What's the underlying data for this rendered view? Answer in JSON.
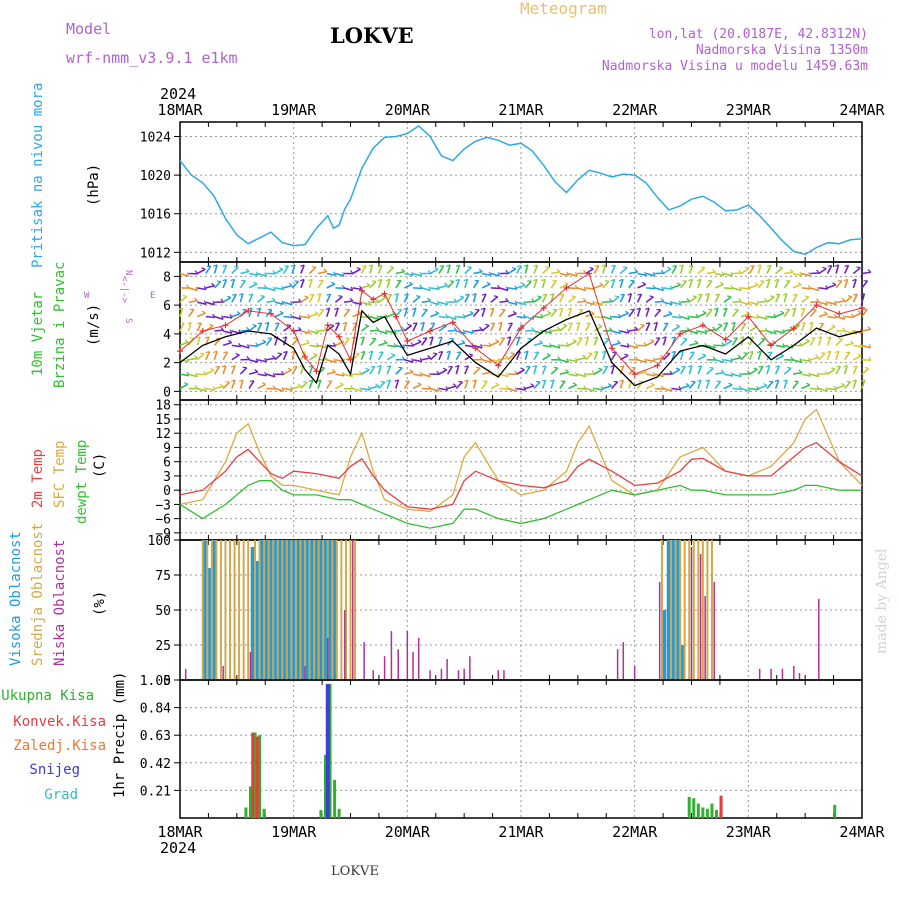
{
  "header": {
    "model_label": "Model",
    "model_name": "wrf-nmm_v3.9.1 e1km",
    "station": "LOKVE",
    "meteogram": "Meteogram",
    "lonlat": "lon,lat (20.0187E, 42.8312N)",
    "elevation": "Nadmorska Visina 1350m",
    "elevation_model": "Nadmorska Visina u modelu 1459.63m",
    "footer_station": "LOKVE",
    "credit": "made by Angel"
  },
  "time_axis": {
    "year": "2024",
    "labels": [
      "18MAR",
      "19MAR",
      "20MAR",
      "21MAR",
      "22MAR",
      "23MAR",
      "24MAR"
    ]
  },
  "colors": {
    "pressure": "#2fa8e8",
    "wind_speed": "#000000",
    "gust": "#e83030",
    "temp2m": "#e84040",
    "sfc_temp": "#e0a840",
    "dewpoint": "#30c030",
    "high_cloud": "#1f9be0",
    "mid_cloud": "#d4a84a",
    "low_cloud": "#b0309a",
    "total_precip": "#30b030",
    "convective": "#e83c3c",
    "freezing": "#f07830",
    "snow": "#3c3cd8",
    "hail": "#30c0c0",
    "title_purple": "#b060d0",
    "meteogram_orange": "#e8c070"
  },
  "chart_data": [
    {
      "type": "line",
      "name": "pressure",
      "ylabel_left": "Pritisak na nivou mora",
      "ylabel": "(hPa)",
      "xlim": [
        0,
        6
      ],
      "ylim": [
        1011,
        1025.5
      ],
      "yticks": [
        1012,
        1016,
        1020,
        1024
      ],
      "grid": true,
      "x": [
        0,
        0.1,
        0.2,
        0.3,
        0.4,
        0.5,
        0.6,
        0.7,
        0.8,
        0.9,
        1.0,
        1.1,
        1.2,
        1.3,
        1.35,
        1.4,
        1.45,
        1.5,
        1.6,
        1.7,
        1.8,
        1.9,
        2.0,
        2.1,
        2.2,
        2.3,
        2.4,
        2.5,
        2.6,
        2.7,
        2.8,
        2.9,
        3.0,
        3.1,
        3.2,
        3.3,
        3.4,
        3.5,
        3.6,
        3.7,
        3.8,
        3.9,
        4.0,
        4.1,
        4.2,
        4.3,
        4.4,
        4.5,
        4.6,
        4.7,
        4.8,
        4.9,
        5.0,
        5.1,
        5.2,
        5.3,
        5.4,
        5.5,
        5.6,
        5.7,
        5.8,
        5.9,
        6.0
      ],
      "values": [
        1021.5,
        1020,
        1019.2,
        1017.8,
        1015.5,
        1013.8,
        1012.9,
        1013.5,
        1014.1,
        1013,
        1012.7,
        1012.8,
        1014.5,
        1015.8,
        1014.5,
        1014.8,
        1016.5,
        1017.5,
        1020.7,
        1022.8,
        1023.9,
        1024,
        1024.3,
        1025.1,
        1024,
        1022,
        1021.5,
        1022.7,
        1023.5,
        1023.9,
        1023.6,
        1023.1,
        1023.3,
        1022.5,
        1021,
        1019.3,
        1018.2,
        1019.5,
        1020.5,
        1020.2,
        1019.8,
        1020.1,
        1020,
        1019.2,
        1017.7,
        1016.4,
        1016.8,
        1017.5,
        1017.8,
        1017.2,
        1016.3,
        1016.4,
        1016.9,
        1015.8,
        1014.5,
        1013.2,
        1012.1,
        1011.8,
        1012.5,
        1013,
        1012.9,
        1013.3,
        1013.4
      ]
    },
    {
      "type": "line",
      "name": "wind",
      "ylabel_left1": "10m Vjetar",
      "ylabel_left2": "Brzina i Pravac",
      "ylabel": "(m/s)",
      "compass": {
        "n": "N",
        "s": "S",
        "w": "W",
        "e": "E",
        "arrows": "<-|->"
      },
      "xlim": [
        0,
        6
      ],
      "ylim": [
        -0.6,
        9
      ],
      "yticks": [
        0,
        2,
        4,
        6,
        8
      ],
      "grid": true,
      "x": [
        0,
        0.2,
        0.4,
        0.6,
        0.8,
        1.0,
        1.1,
        1.2,
        1.3,
        1.4,
        1.5,
        1.6,
        1.7,
        1.8,
        1.9,
        2.0,
        2.2,
        2.4,
        2.6,
        2.8,
        3.0,
        3.2,
        3.4,
        3.6,
        3.8,
        4.0,
        4.2,
        4.4,
        4.6,
        4.8,
        5.0,
        5.2,
        5.4,
        5.6,
        5.8,
        6.0
      ],
      "series": [
        {
          "key": "speed",
          "values": [
            2.0,
            3.2,
            3.8,
            4.2,
            4.0,
            3.0,
            1.5,
            0.6,
            3.2,
            2.6,
            1.2,
            5.6,
            4.8,
            5.2,
            3.8,
            2.5,
            3.0,
            3.5,
            2.0,
            1.0,
            3.0,
            4.2,
            5.0,
            5.6,
            2.0,
            0.4,
            1.0,
            2.8,
            3.2,
            2.6,
            3.8,
            2.2,
            3.2,
            4.4,
            3.8,
            4.2
          ]
        },
        {
          "key": "gust",
          "values": [
            2.8,
            4.2,
            4.6,
            5.6,
            5.4,
            4.2,
            2.4,
            1.4,
            4.6,
            3.8,
            2.2,
            7.0,
            6.4,
            6.8,
            5.2,
            3.5,
            4.2,
            4.8,
            3.0,
            1.8,
            4.4,
            5.8,
            7.2,
            8.2,
            3.0,
            1.2,
            1.8,
            4.0,
            4.6,
            3.6,
            5.2,
            3.2,
            4.4,
            6.0,
            5.4,
            5.8
          ]
        }
      ]
    },
    {
      "type": "line",
      "name": "temperature",
      "ylabel_left1": "2m Temp",
      "ylabel_left2": "SFC Temp",
      "ylabel_left3": "dewpt Temp",
      "ylabel": "(C)",
      "xlim": [
        0,
        6
      ],
      "ylim": [
        -10.5,
        19
      ],
      "yticks": [
        18,
        15,
        12,
        9,
        6,
        3,
        0,
        -3,
        -6,
        -9
      ],
      "grid": true,
      "x": [
        0,
        0.2,
        0.4,
        0.5,
        0.6,
        0.7,
        0.8,
        0.9,
        1.0,
        1.2,
        1.4,
        1.5,
        1.6,
        1.7,
        1.8,
        2.0,
        2.2,
        2.4,
        2.5,
        2.6,
        2.8,
        3.0,
        3.2,
        3.4,
        3.5,
        3.6,
        3.8,
        4.0,
        4.2,
        4.4,
        4.5,
        4.6,
        4.8,
        5.0,
        5.2,
        5.4,
        5.5,
        5.6,
        5.8,
        6.0
      ],
      "series": [
        {
          "key": "t2m",
          "values": [
            -1,
            0,
            4,
            7,
            8.6,
            6,
            3.5,
            2.5,
            4,
            3.5,
            2.5,
            5,
            6.6,
            3,
            0,
            -3.5,
            -4,
            -3,
            2,
            4,
            2,
            1,
            0.5,
            2,
            5,
            6.5,
            4,
            1,
            1.5,
            4,
            6.5,
            6.7,
            4,
            3,
            3,
            7,
            9,
            10,
            6,
            3
          ]
        },
        {
          "key": "sfc",
          "values": [
            -3,
            -2,
            6,
            12,
            14,
            8,
            3,
            1,
            1,
            0,
            -1,
            7,
            12,
            4,
            -2,
            -4,
            -4.5,
            -1,
            7,
            10,
            2,
            -1,
            0,
            4,
            10,
            13.5,
            2,
            -1,
            0,
            7,
            8,
            9,
            4,
            3,
            5,
            10,
            15,
            17,
            6,
            1
          ]
        },
        {
          "key": "dewp",
          "values": [
            -3,
            -6,
            -3,
            -1,
            1,
            2,
            2,
            0,
            -1,
            -1,
            -2,
            -2,
            -3,
            -4,
            -5,
            -7,
            -8,
            -7,
            -4,
            -4,
            -6,
            -7,
            -6,
            -4,
            -3,
            -2,
            0,
            -1,
            0,
            1,
            0,
            0,
            -1,
            -1,
            -1,
            0,
            1,
            1,
            0,
            0
          ]
        }
      ]
    },
    {
      "type": "bar",
      "name": "clouds",
      "ylabel_left1": "Visoka Oblacnost",
      "ylabel_left2": "Srednja Oblacnost",
      "ylabel_left3": "Niska  Oblacnost",
      "ylabel": "(%)",
      "xlim": [
        0,
        6
      ],
      "ylim": [
        0,
        100
      ],
      "yticks": [
        0,
        25,
        50,
        75,
        100
      ],
      "grid": true,
      "series": [
        {
          "key": "high",
          "x": [
            0.22,
            0.26,
            0.3,
            0.64,
            0.68,
            0.72,
            0.76,
            0.8,
            0.84,
            0.88,
            0.92,
            0.96,
            1.0,
            1.04,
            1.08,
            1.12,
            1.16,
            1.2,
            1.24,
            1.28,
            1.32,
            1.36,
            4.26,
            4.3,
            4.34,
            4.38,
            4.42
          ],
          "values": [
            100,
            80,
            100,
            95,
            85,
            100,
            100,
            100,
            100,
            100,
            100,
            100,
            100,
            100,
            100,
            100,
            100,
            100,
            100,
            100,
            100,
            100,
            50,
            100,
            100,
            100,
            25
          ]
        },
        {
          "key": "mid",
          "x": [
            0.2,
            0.24,
            0.28,
            0.32,
            0.36,
            0.4,
            0.44,
            0.48,
            0.52,
            0.56,
            0.6,
            0.66,
            0.7,
            0.74,
            0.78,
            0.82,
            0.86,
            0.9,
            0.94,
            0.98,
            1.02,
            1.06,
            1.1,
            1.14,
            1.18,
            1.22,
            1.26,
            1.3,
            1.34,
            1.38,
            1.42,
            1.46,
            1.5,
            1.54,
            4.24,
            4.32,
            4.36,
            4.4,
            4.44,
            4.48,
            4.52,
            4.56,
            4.6,
            4.64,
            4.68
          ],
          "values": [
            100,
            100,
            100,
            100,
            100,
            100,
            100,
            100,
            100,
            100,
            100,
            100,
            100,
            100,
            100,
            100,
            100,
            100,
            100,
            100,
            100,
            100,
            100,
            100,
            100,
            100,
            100,
            100,
            100,
            100,
            100,
            100,
            100,
            100,
            100,
            100,
            100,
            100,
            100,
            100,
            100,
            100,
            100,
            100,
            100
          ]
        },
        {
          "key": "low",
          "x": [
            0.05,
            0.38,
            0.62,
            1.1,
            1.3,
            1.45,
            1.52,
            1.62,
            1.7,
            1.8,
            1.86,
            1.92,
            2.0,
            2.05,
            2.1,
            2.2,
            2.3,
            2.35,
            2.45,
            2.5,
            2.55,
            2.8,
            2.85,
            3.85,
            3.9,
            4.0,
            4.22,
            4.5,
            4.58,
            4.62,
            4.7,
            5.1,
            5.2,
            5.3,
            5.4,
            5.45,
            5.62
          ],
          "values": [
            8,
            10,
            20,
            10,
            30,
            50,
            100,
            27,
            7,
            17,
            35,
            22,
            35,
            20,
            30,
            7,
            8,
            15,
            7,
            8,
            17,
            7,
            7,
            22,
            27,
            10,
            70,
            95,
            90,
            60,
            70,
            8,
            8,
            8,
            10,
            5,
            58
          ]
        }
      ]
    },
    {
      "type": "bar",
      "name": "precipitation",
      "legend": [
        "Ukupna Kisa",
        "Konvek.Kisa",
        "Zaledj.Kisa",
        "Snijeg",
        "Grad"
      ],
      "ylabel": "1hr Precip (mm)",
      "xlim": [
        0,
        6
      ],
      "ylim": [
        0,
        1.05
      ],
      "yticks": [
        0.21,
        0.42,
        0.63,
        0.84,
        1.05
      ],
      "grid": true,
      "series": [
        {
          "key": "total",
          "x": [
            0.58,
            0.62,
            0.66,
            0.7,
            0.74,
            1.24,
            1.28,
            1.32,
            1.36,
            1.4,
            4.48,
            4.52,
            4.56,
            4.6,
            4.64,
            4.68,
            4.72,
            4.76,
            5.76
          ],
          "values": [
            0.08,
            0.24,
            0.65,
            0.63,
            0.07,
            0.06,
            0.48,
            1.02,
            0.29,
            0.07,
            0.16,
            0.15,
            0.11,
            0.08,
            0.07,
            0.11,
            0.06,
            0.15,
            0.1
          ]
        },
        {
          "key": "convective",
          "x": [
            0.64,
            0.68,
            4.76
          ],
          "values": [
            0.65,
            0.62,
            0.17
          ]
        },
        {
          "key": "snow",
          "x": [
            1.3
          ],
          "values": [
            1.02
          ]
        }
      ]
    }
  ]
}
